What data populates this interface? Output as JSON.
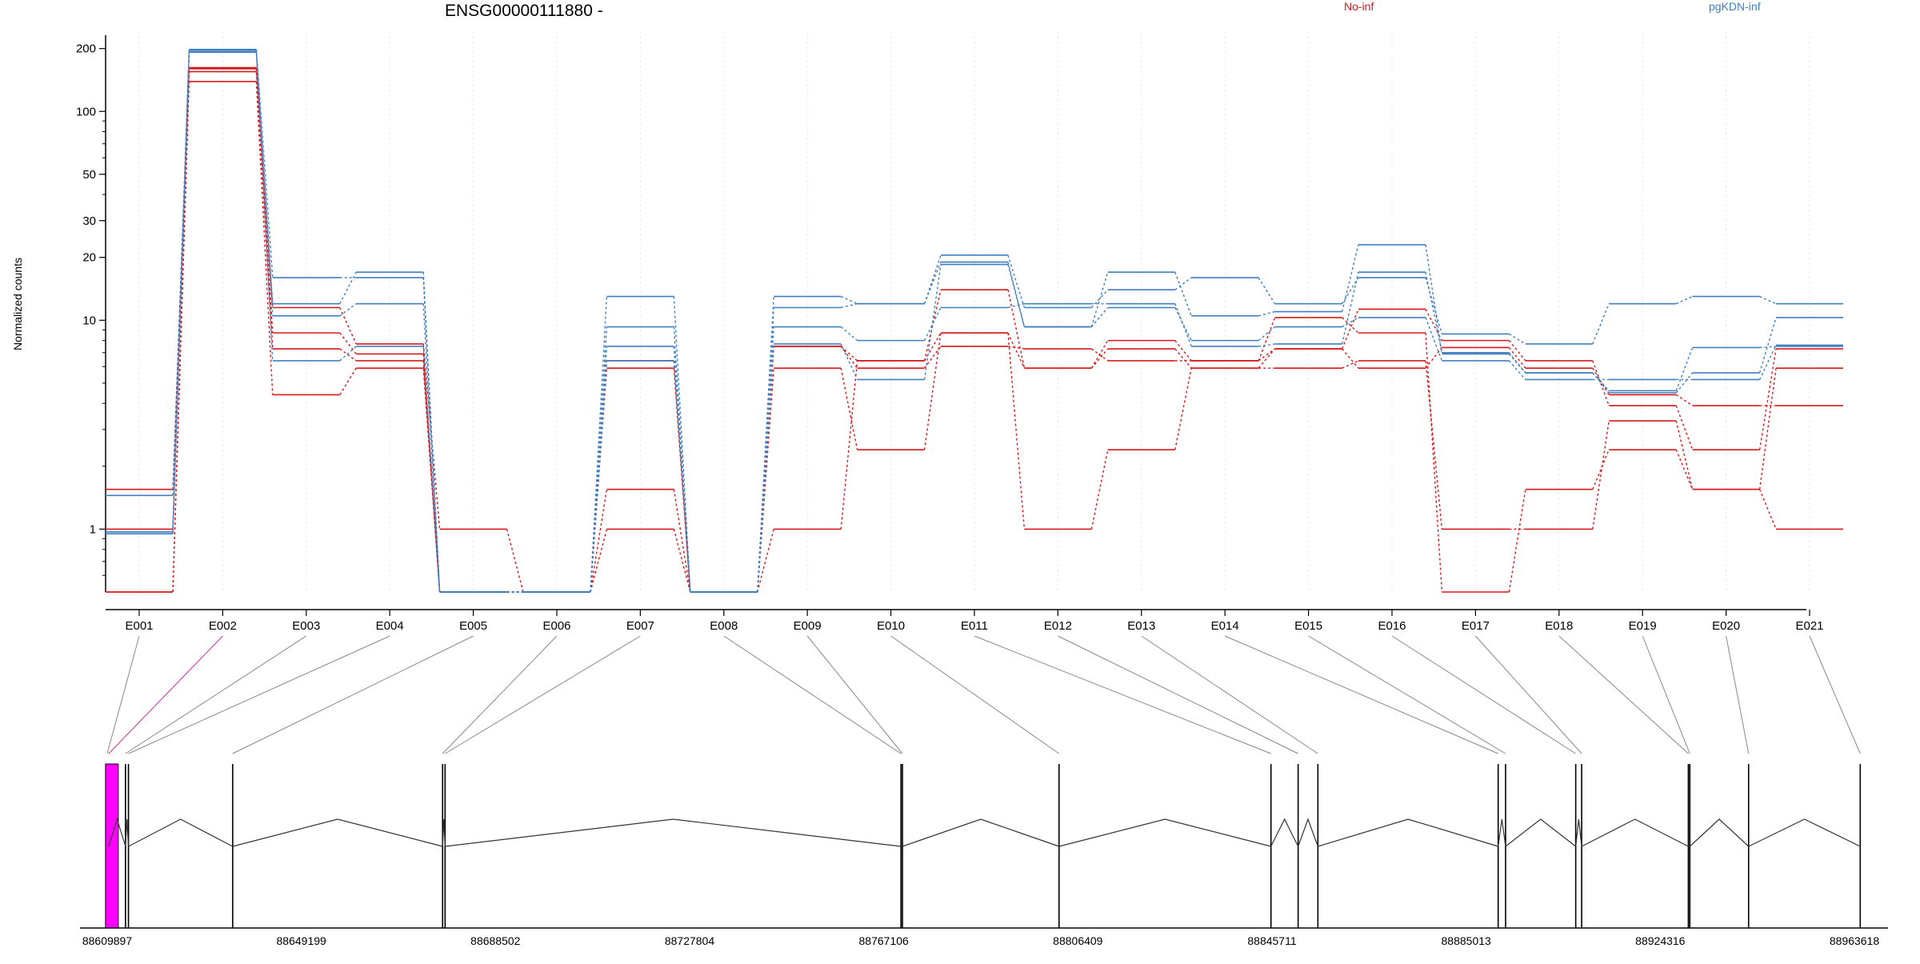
{
  "chart_data": {
    "type": "line",
    "title": "ENSG00000111880 -",
    "xlabel": "",
    "ylabel": "Normalized counts",
    "yscale": "log",
    "ylim": [
      0.5,
      240
    ],
    "yticks": [
      1,
      10,
      20,
      30,
      50,
      100,
      200
    ],
    "grid": "vertical dotted",
    "legend": "top, horizontal",
    "categories": [
      "E001",
      "E002",
      "E003",
      "E004",
      "E005",
      "E006",
      "E007",
      "E008",
      "E009",
      "E010",
      "E011",
      "E012",
      "E013",
      "E014",
      "E015",
      "E016",
      "E017",
      "E018",
      "E019",
      "E020",
      "E021"
    ],
    "series": [
      {
        "name": "No-inf",
        "color": "#d7191c",
        "samples": [
          [
            0.5,
            160,
            11.5,
            7.7,
            1,
            0.5,
            6.4,
            0.5,
            7.5,
            6.4,
            14,
            5.9,
            8,
            6.4,
            7.3,
            11.3,
            8,
            6.4,
            3.9,
            2.4,
            7.3
          ],
          [
            1.55,
            162,
            8.7,
            6.9,
            0.5,
            0.5,
            5.9,
            0.5,
            5.9,
            2.4,
            8.7,
            1,
            2.4,
            5.9,
            5.9,
            6.4,
            1,
            1,
            3.3,
            1.55,
            5.9
          ],
          [
            1,
            155,
            7.3,
            6.4,
            0.5,
            0.5,
            1.55,
            0.5,
            7.5,
            5.9,
            7.5,
            7.3,
            6.4,
            6.4,
            10.3,
            8.7,
            0.5,
            1.55,
            2.4,
            1.55,
            1
          ],
          [
            0.5,
            139,
            4.4,
            5.9,
            0.5,
            0.5,
            1,
            0.5,
            1,
            6.4,
            8.7,
            5.9,
            7.3,
            5.9,
            7.3,
            5.9,
            7.4,
            5.9,
            4.4,
            3.9,
            3.9
          ]
        ]
      },
      {
        "name": "pgKDN-inf",
        "color": "#3f7fbf",
        "samples": [
          [
            1.45,
            198,
            16,
            16,
            0.5,
            0.5,
            13,
            0.5,
            13,
            12,
            20.5,
            11.5,
            14,
            16,
            12,
            16,
            8.6,
            7.7,
            12,
            13,
            12
          ],
          [
            0.95,
            192,
            12,
            17,
            0.5,
            0.5,
            9.3,
            0.5,
            11.5,
            12,
            19,
            9.3,
            17,
            10.5,
            11,
            23,
            6.9,
            5.6,
            4.5,
            5.6,
            10.3
          ],
          [
            0.97,
            194,
            10.5,
            12,
            0.5,
            0.5,
            7.5,
            0.5,
            9.3,
            8,
            11.5,
            12,
            12,
            7.5,
            7.7,
            17,
            7,
            5.6,
            4.6,
            7.4,
            7.5
          ],
          [
            0.97,
            197,
            6.4,
            7.5,
            0.5,
            0.5,
            6.4,
            0.5,
            7.7,
            5.2,
            18.5,
            9.3,
            11.5,
            8,
            9.3,
            10.3,
            6.4,
            5.2,
            5.2,
            5.2,
            7.6
          ]
        ]
      }
    ],
    "genomic_axis": {
      "ticks": [
        "88609897",
        "88649199",
        "88688502",
        "88727804",
        "88767106",
        "88806409",
        "88845711",
        "88885013",
        "88924316",
        "88963618"
      ],
      "range": [
        88609897,
        88963618
      ],
      "exons": [
        {
          "id": "E001",
          "pos": 88609897
        },
        {
          "id": "E002",
          "pos": 88610200,
          "highlight": true
        },
        {
          "id": "E003",
          "pos": 88613600
        },
        {
          "id": "E004",
          "pos": 88614200
        },
        {
          "id": "E005",
          "pos": 88635300
        },
        {
          "id": "E006",
          "pos": 88677800
        },
        {
          "id": "E007",
          "pos": 88678300
        },
        {
          "id": "E008",
          "pos": 88770600
        },
        {
          "id": "E009",
          "pos": 88770900
        },
        {
          "id": "E010",
          "pos": 88802600
        },
        {
          "id": "E011",
          "pos": 88845500
        },
        {
          "id": "E012",
          "pos": 88851000
        },
        {
          "id": "E013",
          "pos": 88855000
        },
        {
          "id": "E014",
          "pos": 88891500
        },
        {
          "id": "E015",
          "pos": 88893000
        },
        {
          "id": "E016",
          "pos": 88907200
        },
        {
          "id": "E017",
          "pos": 88908400
        },
        {
          "id": "E018",
          "pos": 88930000
        },
        {
          "id": "E019",
          "pos": 88930300
        },
        {
          "id": "E020",
          "pos": 88942200
        },
        {
          "id": "E021",
          "pos": 88964800
        }
      ]
    }
  },
  "colors": {
    "no_inf": "#d7191c",
    "pgkdn_inf": "#3f7fbf",
    "exon_highlight": "#ff00ff",
    "structure": "#333333"
  }
}
